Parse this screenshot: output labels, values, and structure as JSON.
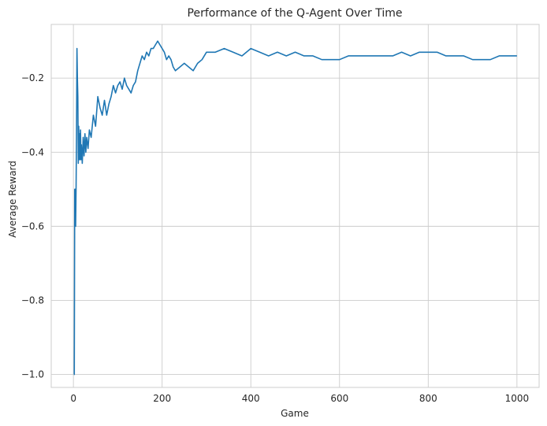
{
  "chart_data": {
    "type": "line",
    "title": "Performance of the Q-Agent Over Time",
    "xlabel": "Game",
    "ylabel": "Average Reward",
    "xlim": [
      -50,
      1050
    ],
    "ylim": [
      -1.035,
      -0.055
    ],
    "x_ticks": [
      0,
      200,
      400,
      600,
      800,
      1000
    ],
    "y_ticks": [
      -1.0,
      -0.8,
      -0.6,
      -0.4,
      -0.2
    ],
    "x_tick_labels": [
      "0",
      "200",
      "400",
      "600",
      "800",
      "1000"
    ],
    "y_tick_labels": [
      "−1.0",
      "−0.8",
      "−0.6",
      "−0.4",
      "−0.2"
    ],
    "grid": true,
    "colors": {
      "line": "#1f77b4",
      "grid": "#cccccc",
      "spine": "#cccccc"
    },
    "series": [
      {
        "x": [
          1,
          2,
          3,
          4,
          5,
          6,
          7,
          8,
          9,
          10,
          11,
          12,
          13,
          14,
          15,
          16,
          17,
          18,
          20,
          22,
          24,
          26,
          28,
          30,
          33,
          36,
          40,
          45,
          50,
          55,
          60,
          65,
          70,
          75,
          80,
          85,
          90,
          95,
          100,
          105,
          110,
          115,
          120,
          125,
          130,
          135,
          140,
          145,
          150,
          155,
          160,
          165,
          170,
          175,
          180,
          185,
          190,
          195,
          200,
          205,
          210,
          215,
          220,
          225,
          230,
          240,
          250,
          260,
          270,
          280,
          290,
          300,
          320,
          340,
          360,
          380,
          400,
          420,
          440,
          460,
          480,
          500,
          520,
          540,
          560,
          580,
          600,
          620,
          640,
          660,
          680,
          700,
          720,
          740,
          760,
          780,
          800,
          820,
          840,
          860,
          880,
          900,
          920,
          940,
          960,
          980,
          1000
        ],
        "y": [
          -1.0,
          -1.0,
          -0.5,
          -0.5,
          -0.6,
          -0.5,
          -0.35,
          -0.12,
          -0.2,
          -0.25,
          -0.43,
          -0.33,
          -0.42,
          -0.35,
          -0.42,
          -0.34,
          -0.42,
          -0.38,
          -0.43,
          -0.36,
          -0.41,
          -0.35,
          -0.4,
          -0.36,
          -0.39,
          -0.34,
          -0.36,
          -0.3,
          -0.33,
          -0.25,
          -0.28,
          -0.3,
          -0.26,
          -0.3,
          -0.27,
          -0.25,
          -0.22,
          -0.24,
          -0.22,
          -0.21,
          -0.23,
          -0.2,
          -0.22,
          -0.23,
          -0.24,
          -0.22,
          -0.21,
          -0.18,
          -0.16,
          -0.14,
          -0.15,
          -0.13,
          -0.14,
          -0.12,
          -0.12,
          -0.11,
          -0.1,
          -0.11,
          -0.12,
          -0.13,
          -0.15,
          -0.14,
          -0.15,
          -0.17,
          -0.18,
          -0.17,
          -0.16,
          -0.17,
          -0.18,
          -0.16,
          -0.15,
          -0.13,
          -0.13,
          -0.12,
          -0.13,
          -0.14,
          -0.12,
          -0.13,
          -0.14,
          -0.13,
          -0.14,
          -0.13,
          -0.14,
          -0.14,
          -0.15,
          -0.15,
          -0.15,
          -0.14,
          -0.14,
          -0.14,
          -0.14,
          -0.14,
          -0.14,
          -0.13,
          -0.14,
          -0.13,
          -0.13,
          -0.13,
          -0.14,
          -0.14,
          -0.14,
          -0.15,
          -0.15,
          -0.15,
          -0.14,
          -0.14,
          -0.14
        ]
      }
    ]
  }
}
